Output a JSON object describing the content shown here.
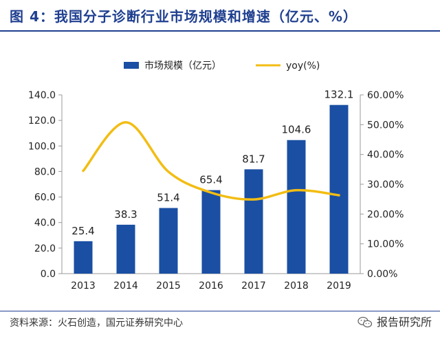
{
  "figure": {
    "title": "图 4：我国分子诊断行业市场规模和增速（亿元、%）",
    "source": "资料来源：火石创造，国元证券研究中心",
    "watermark": "报告研究所"
  },
  "colors": {
    "bar": "#1a4fa3",
    "line": "#f2bd13",
    "title": "#1f3f8f"
  },
  "chart_data": {
    "type": "bar",
    "categories": [
      "2013",
      "2014",
      "2015",
      "2016",
      "2017",
      "2018",
      "2019"
    ],
    "series": [
      {
        "name": "市场规模（亿元）",
        "type": "bar",
        "axis": "left",
        "values": [
          25.4,
          38.3,
          51.4,
          65.4,
          81.7,
          104.6,
          132.1
        ]
      },
      {
        "name": "yoy(%)",
        "type": "line",
        "axis": "right",
        "values": [
          34.5,
          50.8,
          34.2,
          27.2,
          24.9,
          28.0,
          26.3
        ]
      }
    ],
    "ylim": [
      0,
      140
    ],
    "y_ticks": [
      "0.0",
      "20.0",
      "40.0",
      "60.0",
      "80.0",
      "100.0",
      "120.0",
      "140.0"
    ],
    "y2lim": [
      0,
      60
    ],
    "y2_ticks": [
      "0.00%",
      "10.00%",
      "20.00%",
      "30.00%",
      "40.00%",
      "50.00%",
      "60.00%"
    ],
    "data_labels": [
      "25.4",
      "38.3",
      "51.4",
      "65.4",
      "81.7",
      "104.6",
      "132.1"
    ],
    "legend": "top",
    "grid": false
  }
}
